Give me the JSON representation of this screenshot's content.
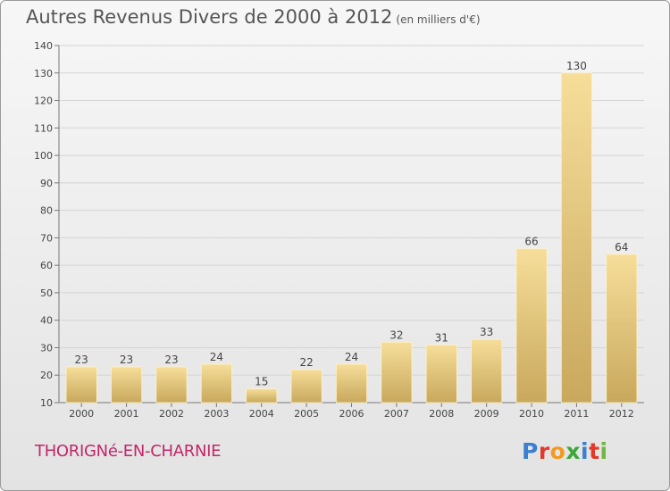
{
  "header": {
    "title": "Autres Revenus Divers de 2000 à 2012",
    "subtitle": "(en milliers d'€)"
  },
  "footer": {
    "commune": "THORIGNé-EN-CHARNIE",
    "logo": "Proxiti"
  },
  "colors": {
    "bar_light": "#f6de9a",
    "bar_dark": "#c8a85c",
    "commune_text": "#c0276a",
    "logo_letters": [
      "#3a7fd0",
      "#e2392b",
      "#f29a1f",
      "#3aa83a",
      "#3a7fd0",
      "#e2392b",
      "#6fb83f"
    ]
  },
  "chart_data": {
    "type": "bar",
    "categories": [
      "2000",
      "2001",
      "2002",
      "2003",
      "2004",
      "2005",
      "2006",
      "2007",
      "2008",
      "2009",
      "2010",
      "2011",
      "2012"
    ],
    "values": [
      23,
      23,
      23,
      24,
      15,
      22,
      24,
      32,
      31,
      33,
      66,
      130,
      64
    ],
    "ylim": [
      10,
      140
    ],
    "yticks": [
      10,
      20,
      30,
      40,
      50,
      60,
      70,
      80,
      90,
      100,
      110,
      120,
      130,
      140
    ],
    "grid": true
  }
}
